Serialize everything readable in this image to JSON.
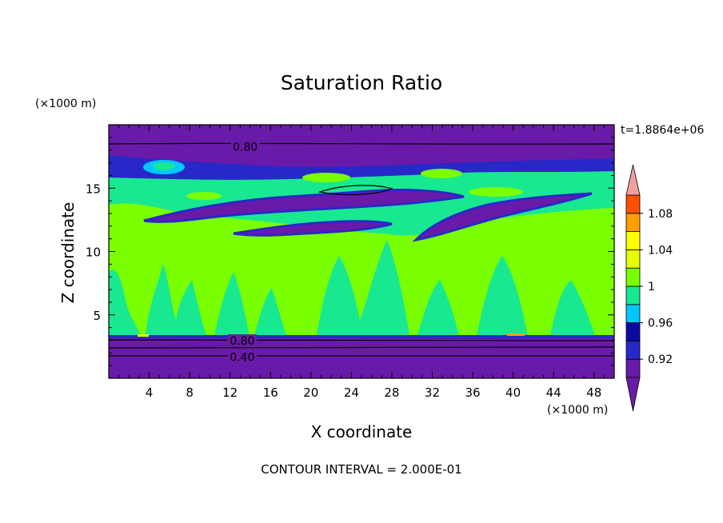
{
  "chart_data": {
    "type": "heatmap",
    "title": "Saturation Ratio",
    "xlabel": "X coordinate",
    "ylabel": "Z coordinate",
    "x_unit": "(×1000 m)",
    "y_unit": "(×1000 m)",
    "time_label": "t=1.8864e+06",
    "footer": "CONTOUR INTERVAL = 2.000E-01",
    "xlim": [
      0,
      50
    ],
    "ylim": [
      0,
      20
    ],
    "x_ticks": [
      "4",
      "8",
      "12",
      "16",
      "20",
      "24",
      "28",
      "32",
      "36",
      "40",
      "44",
      "48"
    ],
    "y_ticks": [
      "5",
      "10",
      "15"
    ],
    "contour_labels": [
      {
        "text": "0.80",
        "x": 13.5,
        "y": 18.2
      },
      {
        "text": "0.80",
        "x": 13.2,
        "y": 2.9
      },
      {
        "text": "0.40",
        "x": 13.2,
        "y": 1.6
      }
    ],
    "colorbar": {
      "levels": [
        0.9,
        0.92,
        0.94,
        0.96,
        0.98,
        1.0,
        1.02,
        1.04,
        1.06,
        1.08,
        1.1
      ],
      "tick_labels": [
        "0.92",
        "0.96",
        "1",
        "1.04",
        "1.08"
      ],
      "tick_values": [
        0.92,
        0.96,
        1.0,
        1.04,
        1.08
      ],
      "colors": [
        "#6a1aa8",
        "#2828c8",
        "#0a0aa0",
        "#00c8ff",
        "#18e890",
        "#7aff00",
        "#e6ff00",
        "#ffff00",
        "#ffa000",
        "#ff5000",
        "#e61e1e",
        "#f0a0a0"
      ],
      "under_color": "#6a1aa8",
      "over_color": "#f0a0a0"
    }
  }
}
